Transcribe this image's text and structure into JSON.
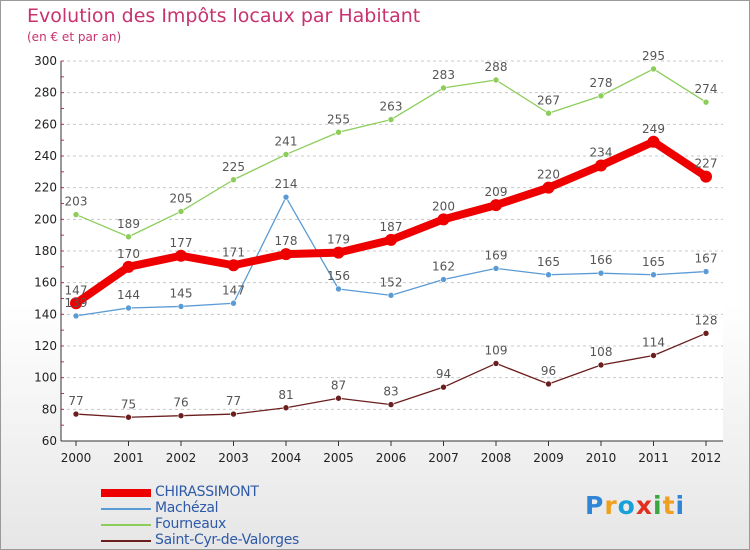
{
  "title": "Evolution des Impôts locaux par Habitant",
  "subtitle": "(en € et par an)",
  "logo": {
    "text": "Proxiti",
    "letter_colors": [
      "#2f86d6",
      "#f0a020",
      "#1aa0d8",
      "#e03020",
      "#3aa640",
      "#f0a020",
      "#2f86d6"
    ]
  },
  "chart_data": {
    "type": "line",
    "title": "Evolution des Impôts locaux par Habitant",
    "subtitle": "(en € et par an)",
    "xlabel": "",
    "ylabel": "",
    "ylim": [
      60,
      300
    ],
    "yticks": [
      60,
      80,
      100,
      120,
      140,
      160,
      180,
      200,
      220,
      240,
      260,
      280,
      300
    ],
    "grid": "horizontal-dashed",
    "legend_position": "bottom-left",
    "x": [
      "2000",
      "2001",
      "2002",
      "2003",
      "2004",
      "2005",
      "2006",
      "2007",
      "2008",
      "2009",
      "2010",
      "2011",
      "2012"
    ],
    "series": [
      {
        "name": "Fourneaux",
        "color": "#8ccd5a",
        "values": [
          203,
          189,
          205,
          225,
          241,
          255,
          263,
          283,
          288,
          267,
          278,
          295,
          274
        ]
      },
      {
        "name": "Machézal",
        "color": "#5b9bd5",
        "values": [
          139,
          144,
          145,
          147,
          214,
          156,
          152,
          162,
          169,
          165,
          166,
          165,
          167
        ]
      },
      {
        "name": "Saint-Cyr-de-Valorges",
        "color": "#6b1e1e",
        "values": [
          77,
          75,
          76,
          77,
          81,
          87,
          83,
          94,
          109,
          96,
          108,
          114,
          128
        ]
      },
      {
        "name": "CHIRASSIMONT",
        "color": "#ee0000",
        "values": [
          147,
          170,
          177,
          171,
          178,
          179,
          187,
          200,
          209,
          220,
          234,
          249,
          227
        ]
      }
    ],
    "legend_order": [
      "CHIRASSIMONT",
      "Machézal",
      "Fourneaux",
      "Saint-Cyr-de-Valorges"
    ]
  }
}
